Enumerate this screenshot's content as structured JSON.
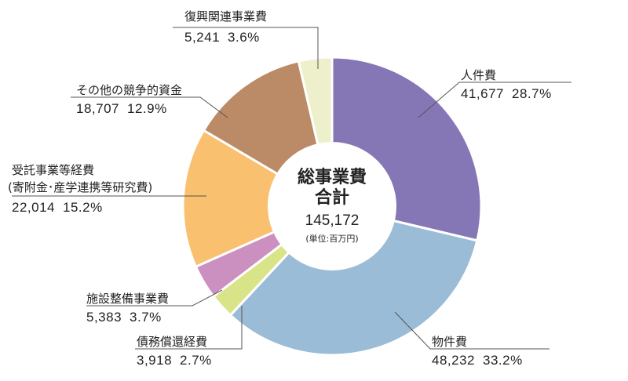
{
  "chart_data": {
    "type": "pie",
    "center": {
      "title_line1": "総事業費",
      "title_line2": "合計",
      "total": "145,172",
      "unit": "(単位:百万円)"
    },
    "slices": [
      {
        "label": "人件費",
        "value": 41677,
        "value_text": "41,677",
        "percent_text": "28.7%",
        "color": "#8577b5"
      },
      {
        "label": "物件費",
        "value": 48232,
        "value_text": "48,232",
        "percent_text": "33.2%",
        "color": "#9bbcd6"
      },
      {
        "label": "債務償還経費",
        "value": 3918,
        "value_text": "3,918",
        "percent_text": "2.7%",
        "color": "#d9e488"
      },
      {
        "label": "施設整備事業費",
        "value": 5383,
        "value_text": "5,383",
        "percent_text": "3.7%",
        "color": "#cc90c0"
      },
      {
        "label": "受託事業等経費",
        "label2": "(寄附金･産学連携等研究費)",
        "value": 22014,
        "value_text": "22,014",
        "percent_text": "15.2%",
        "color": "#f9c070"
      },
      {
        "label": "その他の競争的資金",
        "value": 18707,
        "value_text": "18,707",
        "percent_text": "12.9%",
        "color": "#bb8a66"
      },
      {
        "label": "復興関連事業費",
        "value": 5241,
        "value_text": "5,241",
        "percent_text": "3.6%",
        "color": "#eef0cc"
      }
    ]
  }
}
